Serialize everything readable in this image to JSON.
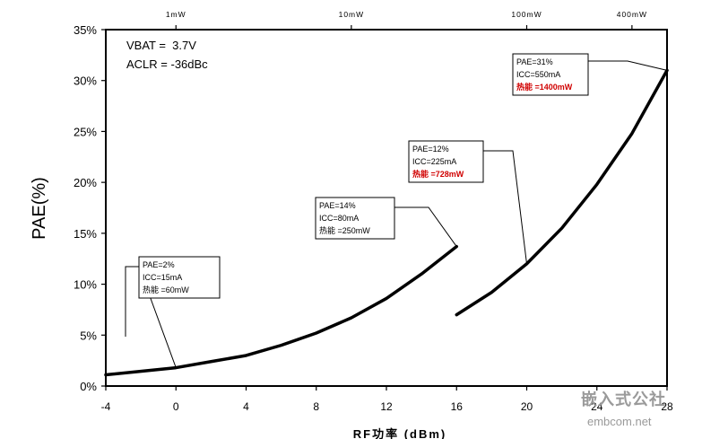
{
  "chart_data": {
    "type": "line",
    "title": "",
    "xlabel": "RF功率 (dBm)",
    "ylabel": "PAE(%)",
    "xlim": [
      -4,
      28
    ],
    "ylim": [
      0,
      35
    ],
    "x_ticks": [
      "-4",
      "0",
      "4",
      "8",
      "12",
      "16",
      "20",
      "24",
      "28"
    ],
    "y_ticks": [
      "0%",
      "5%",
      "10%",
      "15%",
      "20%",
      "25%",
      "30%",
      "35%"
    ],
    "top_axis_ticks": [
      {
        "label": "1mW",
        "x": 0
      },
      {
        "label": "10mW",
        "x": 10
      },
      {
        "label": "100mW",
        "x": 20
      },
      {
        "label": "400mW",
        "x": 26
      }
    ],
    "grid": false,
    "conditions": [
      "VBAT =  3.7V",
      "ACLR = -36dBc"
    ],
    "series": [
      {
        "x": [
          -4,
          0,
          2,
          4,
          6,
          8,
          10,
          12,
          14,
          16
        ],
        "y": [
          1.1,
          1.8,
          2.4,
          3.0,
          4.0,
          5.2,
          6.7,
          8.6,
          11.0,
          13.7
        ]
      },
      {
        "x": [
          16,
          18,
          20,
          22,
          24,
          26,
          28
        ],
        "y": [
          7.0,
          9.2,
          12.0,
          15.5,
          19.8,
          24.8,
          31.0
        ]
      }
    ],
    "annotations": [
      {
        "lines": [
          "PAE=2%",
          "ICC=15mA",
          "热能 =60mW"
        ],
        "red_line": -1,
        "target": [
          0,
          1.8
        ]
      },
      {
        "lines": [
          "PAE=14%",
          "ICC=80mA",
          "热能 =250mW"
        ],
        "red_line": -1,
        "target": [
          16,
          13.7
        ]
      },
      {
        "lines": [
          "PAE=12%",
          "ICC=225mA",
          "热能 =728mW"
        ],
        "red_line": 2,
        "target": [
          20,
          12.0
        ]
      },
      {
        "lines": [
          "PAE=31%",
          "ICC=550mA",
          "热能 =1400mW"
        ],
        "red_line": 2,
        "target": [
          28,
          31.0
        ]
      }
    ]
  },
  "watermark": {
    "cn": "嵌入式公社",
    "en": "embcom.net"
  },
  "colors": {
    "curve": "#000000",
    "highlight": "#d00000",
    "watermark": "#9a9a9a"
  }
}
